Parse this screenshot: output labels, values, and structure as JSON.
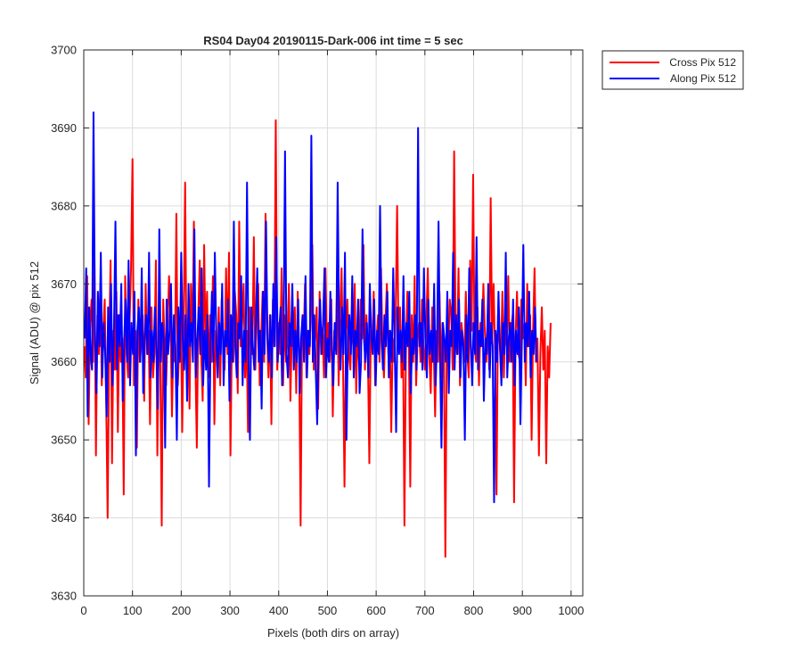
{
  "chart_data": {
    "type": "line",
    "title": "RS04 Day04 20190115-Dark-006 int time = 5 sec",
    "xlabel": "Pixels (both dirs on array)",
    "ylabel": "Signal (ADU) @ pix 512",
    "xlim": [
      0,
      1024
    ],
    "ylim": [
      3630,
      3700
    ],
    "xticks": [
      0,
      100,
      200,
      300,
      400,
      500,
      600,
      700,
      800,
      900,
      1000
    ],
    "yticks": [
      3630,
      3640,
      3650,
      3660,
      3670,
      3680,
      3690,
      3700
    ],
    "grid": true,
    "legend_position": "outside-top-right",
    "series": [
      {
        "name": "Cross Pix 512",
        "color": "#ff0000",
        "x_start": 1,
        "x_step": 3,
        "values": [
          3662,
          3658,
          3671,
          3652,
          3665,
          3668,
          3660,
          3673,
          3648,
          3666,
          3661,
          3670,
          3657,
          3664,
          3668,
          3655,
          3640,
          3662,
          3673,
          3647,
          3664,
          3659,
          3669,
          3651,
          3666,
          3660,
          3663,
          3643,
          3671,
          3661,
          3658,
          3665,
          3672,
          3686,
          3657,
          3664,
          3649,
          3668,
          3660,
          3662,
          3666,
          3655,
          3670,
          3661,
          3664,
          3652,
          3667,
          3658,
          3661,
          3673,
          3648,
          3664,
          3660,
          3639,
          3668,
          3662,
          3657,
          3664,
          3671,
          3666,
          3653,
          3663,
          3660,
          3679,
          3657,
          3662,
          3668,
          3651,
          3665,
          3683,
          3659,
          3664,
          3654,
          3670,
          3662,
          3678,
          3660,
          3649,
          3666,
          3673,
          3661,
          3655,
          3675,
          3662,
          3669,
          3658,
          3666,
          3660,
          3671,
          3652,
          3664,
          3660,
          3667,
          3657,
          3668,
          3663,
          3659,
          3672,
          3661,
          3674,
          3648,
          3663,
          3660,
          3669,
          3666,
          3656,
          3678,
          3662,
          3665,
          3670,
          3658,
          3664,
          3651,
          3667,
          3662,
          3661,
          3676,
          3659,
          3666,
          3670,
          3657,
          3663,
          3669,
          3660,
          3679,
          3664,
          3658,
          3666,
          3652,
          3668,
          3662,
          3691,
          3659,
          3665,
          3661,
          3672,
          3657,
          3666,
          3660,
          3663,
          3670,
          3655,
          3664,
          3662,
          3667,
          3656,
          3669,
          3661,
          3639,
          3665,
          3662,
          3670,
          3658,
          3664,
          3661,
          3666,
          3675,
          3659,
          3663,
          3667,
          3654,
          3669,
          3661,
          3664,
          3658,
          3672,
          3662,
          3665,
          3660,
          3668,
          3653,
          3664,
          3662,
          3670,
          3657,
          3666,
          3672,
          3660,
          3644,
          3663,
          3668,
          3661,
          3659,
          3665,
          3662,
          3670,
          3656,
          3664,
          3660,
          3668,
          3663,
          3675,
          3659,
          3666,
          3661,
          3647,
          3664,
          3662,
          3669,
          3657,
          3663,
          3666,
          3660,
          3672,
          3662,
          3658,
          3665,
          3670,
          3661,
          3664,
          3651,
          3663,
          3660,
          3666,
          3680,
          3662,
          3667,
          3658,
          3664,
          3639,
          3661,
          3669,
          3663,
          3644,
          3666,
          3660,
          3671,
          3657,
          3663,
          3665,
          3660,
          3668,
          3662,
          3659,
          3665,
          3672,
          3661,
          3656,
          3667,
          3662,
          3653,
          3664,
          3660,
          3669,
          3658,
          3665,
          3662,
          3635,
          3663,
          3661,
          3668,
          3666,
          3659,
          3687,
          3664,
          3661,
          3672,
          3657,
          3665,
          3663,
          3660,
          3669,
          3661,
          3658,
          3673,
          3664,
          3684,
          3662,
          3660,
          3667,
          3657,
          3665,
          3662,
          3670,
          3664,
          3660,
          3666,
          3659,
          3681,
          3663,
          3670,
          3661,
          3643,
          3666,
          3663,
          3660,
          3669,
          3658,
          3665,
          3662,
          3671,
          3660,
          3664,
          3666,
          3642,
          3663,
          3669,
          3661,
          3660,
          3668,
          3663,
          3665,
          3657,
          3670,
          3662,
          3666,
          3650,
          3664,
          3672,
          3660,
          3663,
          3648,
          3661,
          3667,
          3659,
          3664,
          3647,
          3662,
          3658,
          3665
        ]
      },
      {
        "name": "Along Pix 512",
        "color": "#0000ff",
        "x_start": 2,
        "x_step": 3,
        "values": [
          3663,
          3672,
          3653,
          3667,
          3661,
          3659,
          3692,
          3664,
          3656,
          3669,
          3662,
          3674,
          3658,
          3665,
          3661,
          3653,
          3667,
          3660,
          3670,
          3657,
          3664,
          3678,
          3659,
          3666,
          3662,
          3670,
          3655,
          3663,
          3668,
          3660,
          3673,
          3657,
          3665,
          3661,
          3669,
          3648,
          3664,
          3667,
          3660,
          3672,
          3656,
          3663,
          3666,
          3661,
          3674,
          3658,
          3664,
          3660,
          3667,
          3662,
          3654,
          3677,
          3660,
          3665,
          3663,
          3649,
          3668,
          3661,
          3664,
          3670,
          3658,
          3666,
          3662,
          3650,
          3667,
          3660,
          3674,
          3663,
          3659,
          3666,
          3655,
          3670,
          3662,
          3665,
          3660,
          3677,
          3658,
          3663,
          3667,
          3661,
          3672,
          3657,
          3664,
          3659,
          3666,
          3644,
          3662,
          3669,
          3660,
          3674,
          3663,
          3658,
          3665,
          3661,
          3670,
          3657,
          3664,
          3662,
          3668,
          3655,
          3666,
          3660,
          3678,
          3662,
          3658,
          3665,
          3663,
          3671,
          3657,
          3664,
          3660,
          3683,
          3661,
          3650,
          3667,
          3662,
          3659,
          3665,
          3672,
          3660,
          3664,
          3654,
          3669,
          3661,
          3678,
          3663,
          3660,
          3666,
          3658,
          3670,
          3662,
          3676,
          3660,
          3664,
          3667,
          3657,
          3663,
          3687,
          3661,
          3658,
          3665,
          3662,
          3670,
          3659,
          3664,
          3660,
          3668,
          3656,
          3663,
          3666,
          3660,
          3671,
          3658,
          3664,
          3662,
          3689,
          3660,
          3666,
          3659,
          3652,
          3663,
          3668,
          3661,
          3665,
          3672,
          3658,
          3663,
          3660,
          3669,
          3662,
          3657,
          3665,
          3661,
          3683,
          3664,
          3659,
          3667,
          3661,
          3674,
          3650,
          3663,
          3666,
          3661,
          3671,
          3658,
          3664,
          3662,
          3668,
          3656,
          3660,
          3677,
          3663,
          3660,
          3665,
          3658,
          3670,
          3663,
          3661,
          3668,
          3657,
          3664,
          3661,
          3680,
          3663,
          3659,
          3666,
          3662,
          3669,
          3658,
          3664,
          3660,
          3672,
          3662,
          3651,
          3667,
          3661,
          3664,
          3660,
          3671,
          3659,
          3665,
          3662,
          3669,
          3656,
          3663,
          3661,
          3666,
          3659,
          3690,
          3662,
          3665,
          3659,
          3672,
          3663,
          3658,
          3668,
          3661,
          3664,
          3660,
          3670,
          3657,
          3663,
          3678,
          3661,
          3649,
          3665,
          3663,
          3660,
          3669,
          3656,
          3664,
          3662,
          3674,
          3659,
          3666,
          3661,
          3668,
          3658,
          3664,
          3662,
          3650,
          3666,
          3660,
          3672,
          3663,
          3657,
          3665,
          3661,
          3676,
          3659,
          3664,
          3662,
          3668,
          3655,
          3663,
          3661,
          3670,
          3658,
          3665,
          3662,
          3642,
          3664,
          3660,
          3669,
          3662,
          3657,
          3665,
          3661,
          3674,
          3658,
          3663,
          3665,
          3660,
          3668,
          3657,
          3664,
          3661,
          3667,
          3652,
          3663,
          3675,
          3660,
          3665,
          3662,
          3669,
          3658,
          3664,
          3661,
          3667,
          3660
        ]
      }
    ]
  }
}
